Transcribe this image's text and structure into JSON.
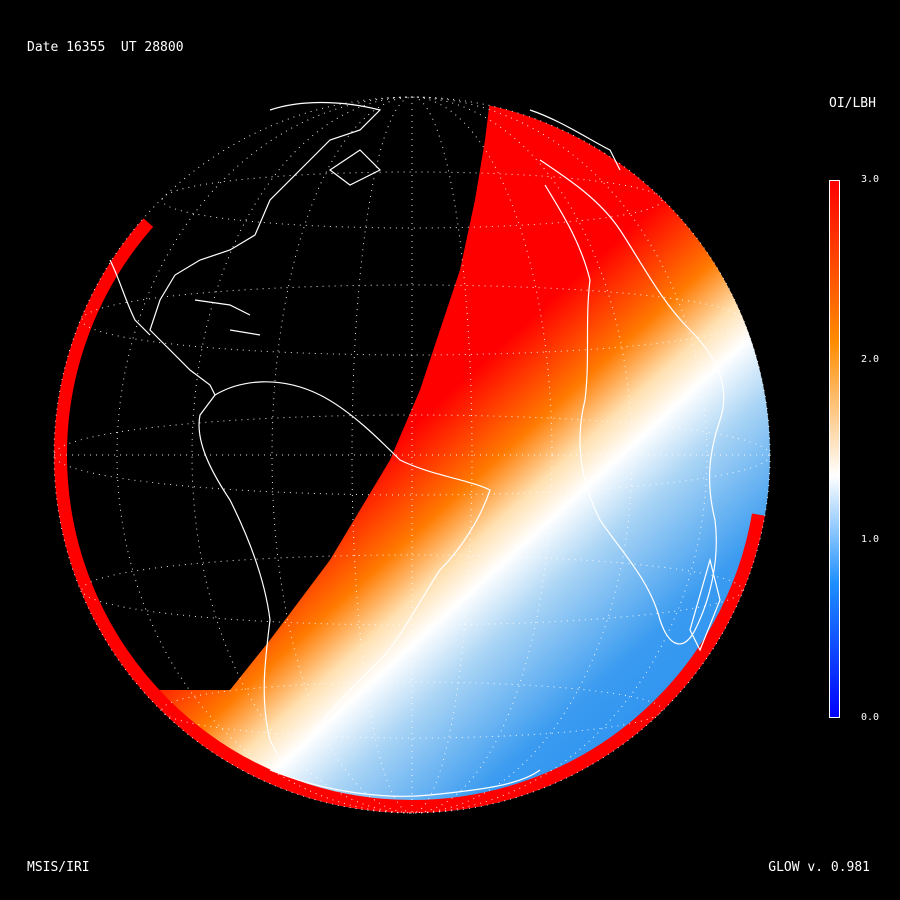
{
  "header": {
    "date_text": "Date 16355  UT 28800"
  },
  "footer": {
    "model": "MSIS/IRI",
    "version": "GLOW v. 0.981"
  },
  "colorbar": {
    "title": "OI/LBH",
    "ticks": [
      "3.0",
      "2.0",
      "1.0",
      "0.0"
    ],
    "range": [
      0.0,
      3.0
    ],
    "colors": {
      "max": "#ff0000",
      "high": "#ff8c00",
      "mid": "#ffffff",
      "low": "#1e90ff",
      "min": "#0000ff"
    }
  },
  "map": {
    "projection": "orthographic",
    "grid": "dotted",
    "coastline_color": "#ffffff",
    "night_color": "#000000"
  }
}
